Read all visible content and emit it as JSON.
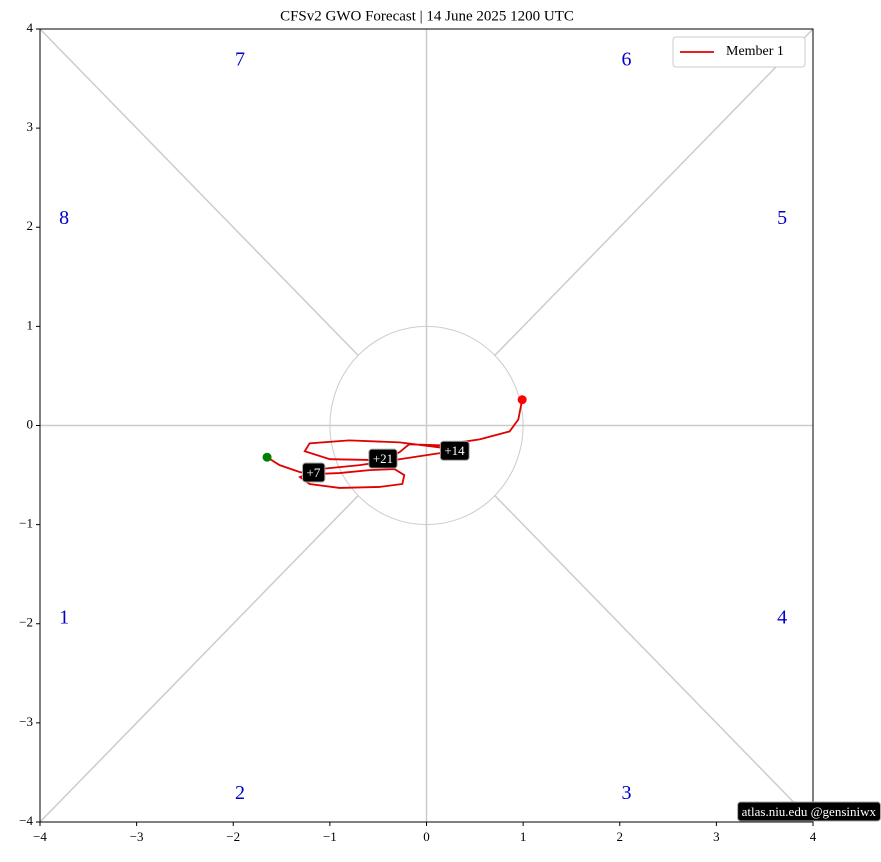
{
  "chart_data": {
    "type": "line",
    "title": "CFSv2 GWO Forecast   |   14  June  2025 1200 UTC",
    "xlim": [
      -4,
      4
    ],
    "ylim": [
      -4,
      4
    ],
    "xticks": [
      {
        "value": -4,
        "label": "−4"
      },
      {
        "value": -3,
        "label": "−3"
      },
      {
        "value": -2,
        "label": "−2"
      },
      {
        "value": -1,
        "label": "−1"
      },
      0,
      1,
      2,
      3,
      4
    ],
    "yticks": [
      {
        "value": -4,
        "label": "−4"
      },
      {
        "value": -3,
        "label": "−3"
      },
      {
        "value": -2,
        "label": "−2"
      },
      {
        "value": -1,
        "label": "−1"
      },
      0,
      1,
      2,
      3,
      4
    ],
    "legend": "upper right",
    "series": [
      {
        "name": "Member 1",
        "color": "#e00000",
        "start_color": "#008000",
        "end_color": "#ff0000",
        "x": [
          -1.65,
          -1.52,
          -1.31,
          -1.17,
          -0.9,
          -0.59,
          -0.33,
          -0.23,
          -0.25,
          -0.49,
          -0.9,
          -1.21,
          -1.31,
          -1.11,
          -0.69,
          -0.28,
          0.13,
          0.29,
          0.13,
          -0.28,
          -0.8,
          -1.21,
          -1.26,
          -1.0,
          -0.45,
          -0.28,
          -0.18,
          0.13,
          0.55,
          0.86,
          0.95,
          0.99
        ],
        "values": [
          -0.32,
          -0.4,
          -0.47,
          -0.49,
          -0.48,
          -0.45,
          -0.44,
          -0.5,
          -0.59,
          -0.62,
          -0.63,
          -0.59,
          -0.52,
          -0.44,
          -0.4,
          -0.34,
          -0.28,
          -0.27,
          -0.22,
          -0.17,
          -0.15,
          -0.18,
          -0.26,
          -0.34,
          -0.35,
          -0.27,
          -0.19,
          -0.2,
          -0.14,
          -0.06,
          0.06,
          0.26
        ]
      }
    ],
    "annotations": [
      {
        "text": "+7",
        "x": -1.17,
        "y": -0.49
      },
      {
        "text": "+14",
        "x": 0.29,
        "y": -0.27
      },
      {
        "text": "+21",
        "x": -0.45,
        "y": -0.35
      }
    ],
    "phase_labels": [
      {
        "text": "1",
        "x": -3.75,
        "y": -1.95,
        "color": "#0000cc"
      },
      {
        "text": "2",
        "x": -1.93,
        "y": -3.72,
        "color": "#0000cc"
      },
      {
        "text": "3",
        "x": 2.07,
        "y": -3.72,
        "color": "#0000cc"
      },
      {
        "text": "4",
        "x": 3.68,
        "y": -1.95,
        "color": "#0000cc"
      },
      {
        "text": "5",
        "x": 3.68,
        "y": 2.08,
        "color": "#0000cc"
      },
      {
        "text": "6",
        "x": 2.07,
        "y": 3.68,
        "color": "#0000cc"
      },
      {
        "text": "7",
        "x": -1.93,
        "y": 3.68,
        "color": "#0000cc"
      },
      {
        "text": "8",
        "x": -3.75,
        "y": 2.08,
        "color": "#0000cc"
      }
    ],
    "watermark": "atlas.niu.edu  @gensiniwx"
  }
}
